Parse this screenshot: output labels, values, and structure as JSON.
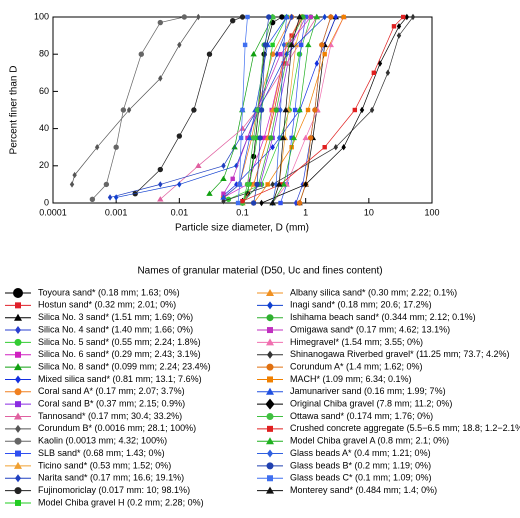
{
  "chart_data": {
    "type": "line",
    "xlabel": "Particle size diameter, D (mm)",
    "ylabel": "Percent finer than D",
    "legend_title": "Names of granular material (D50, Uc and fines content)",
    "xscale": "log",
    "xlim": [
      0.0001,
      100
    ],
    "xticks": [
      0.0001,
      0.001,
      0.01,
      0.1,
      1,
      10,
      100
    ],
    "ylim": [
      0,
      100
    ],
    "yticks": [
      0,
      20,
      40,
      60,
      80,
      100
    ],
    "series": [
      {
        "name": "Toyoura sand* (0.18 mm; 1.63; 0%)",
        "color": "#000000",
        "x": [
          0.1,
          0.12,
          0.15,
          0.18,
          0.22,
          0.3,
          0.42
        ],
        "values": [
          0,
          5,
          25,
          50,
          80,
          97,
          100
        ]
      },
      {
        "name": "Hostun sand* (0.32 mm; 2.01; 0%)",
        "color": "#e0202a",
        "x": [
          0.1,
          0.15,
          0.25,
          0.32,
          0.45,
          0.6,
          0.9
        ],
        "values": [
          0,
          10,
          35,
          50,
          75,
          90,
          100
        ]
      },
      {
        "name": "Silica No. 3 sand* (1.51 mm; 1.69; 0%)",
        "color": "#000000",
        "x": [
          0.8,
          1,
          1.3,
          1.5,
          2,
          3
        ],
        "values": [
          0,
          10,
          35,
          50,
          85,
          100
        ]
      },
      {
        "name": "Silica No. 4 sand* (1.40 mm; 1.66; 0%)",
        "color": "#2a3fd0",
        "x": [
          0.7,
          0.9,
          1.2,
          1.4,
          1.8,
          2.5
        ],
        "values": [
          0,
          10,
          35,
          50,
          85,
          100
        ]
      },
      {
        "name": "Silica No. 5 sand* (0.55 mm; 2.24; 1.8%)",
        "color": "#33cc33",
        "x": [
          0.06,
          0.2,
          0.4,
          0.55,
          0.8,
          1.2
        ],
        "values": [
          2,
          10,
          35,
          50,
          80,
          100
        ]
      },
      {
        "name": "Silica No. 6 sand* (0.29 mm; 2.43; 3.1%)",
        "color": "#d020c0",
        "x": [
          0.05,
          0.12,
          0.22,
          0.29,
          0.5,
          0.85
        ],
        "values": [
          3,
          10,
          35,
          50,
          85,
          100
        ]
      },
      {
        "name": "Silica No. 8 sand* (0.099 mm; 2.24; 23.4%)",
        "color": "#10a010",
        "x": [
          0.03,
          0.05,
          0.075,
          0.099,
          0.15,
          0.3
        ],
        "values": [
          5,
          13,
          30,
          50,
          80,
          100
        ]
      },
      {
        "name": "Mixed silica sand* (0.81 mm; 13.1; 7.6%)",
        "color": "#1530e0",
        "x": [
          0.05,
          0.08,
          0.3,
          0.81,
          1.5,
          3
        ],
        "values": [
          4,
          10,
          30,
          50,
          75,
          100
        ]
      },
      {
        "name": "Coral sand A* (0.17 mm; 2.07; 3.7%)",
        "color": "#f08020",
        "x": [
          0.05,
          0.09,
          0.14,
          0.17,
          0.3,
          0.6
        ],
        "values": [
          3,
          10,
          35,
          50,
          80,
          100
        ]
      },
      {
        "name": "Coral sand B* (0.37 mm; 2.15; 0.9%)",
        "color": "#8a2be2",
        "x": [
          0.1,
          0.19,
          0.3,
          0.37,
          0.6,
          1
        ],
        "values": [
          1,
          10,
          35,
          50,
          85,
          100
        ]
      },
      {
        "name": "Tannosand* (0.17 mm; 30.4; 33.2%)",
        "color": "#e060a0",
        "x": [
          0.005,
          0.02,
          0.1,
          0.17,
          0.5,
          1.5
        ],
        "values": [
          2,
          20,
          40,
          50,
          75,
          100
        ]
      },
      {
        "name": "Corundum B* (0.0016 mm; 28.1; 100%)",
        "color": "#555555",
        "x": [
          0.0002,
          0.00022,
          0.0005,
          0.0016,
          0.005,
          0.01,
          0.02
        ],
        "values": [
          10,
          15,
          30,
          50,
          67,
          85,
          100
        ]
      },
      {
        "name": "Kaolin (0.0013 mm; 4.32; 100%)",
        "color": "#666666",
        "x": [
          0.00042,
          0.0007,
          0.001,
          0.0013,
          0.0025,
          0.005,
          0.012
        ],
        "values": [
          2,
          10,
          30,
          50,
          80,
          97,
          100
        ]
      },
      {
        "name": "SLB sand* (0.68 mm; 1.43; 0%)",
        "color": "#3050f0",
        "x": [
          0.4,
          0.5,
          0.6,
          0.68,
          0.85,
          1
        ],
        "values": [
          0,
          10,
          35,
          50,
          85,
          100
        ]
      },
      {
        "name": "Ticino sand* (0.53 mm; 1.52; 0%)",
        "color": "#f0a030",
        "x": [
          0.3,
          0.38,
          0.47,
          0.53,
          0.7,
          0.9
        ],
        "values": [
          0,
          10,
          35,
          50,
          85,
          100
        ]
      },
      {
        "name": "Narita sand* (0.17 mm; 16.6; 19.1%)",
        "color": "#2040c0",
        "x": [
          0.0008,
          0.005,
          0.05,
          0.17,
          0.35,
          0.6
        ],
        "values": [
          3,
          10,
          20,
          50,
          80,
          100
        ]
      },
      {
        "name": "Fujinomoriclay (0.017 mm: 10; 98.1%)",
        "color": "#222222",
        "x": [
          0.002,
          0.005,
          0.01,
          0.017,
          0.03,
          0.07,
          0.1
        ],
        "values": [
          5,
          18,
          36,
          50,
          80,
          98,
          100
        ]
      },
      {
        "name": "Model Chiba gravel H (0.2 mm; 2.28; 0%)",
        "color": "#22cc22",
        "x": [
          0.1,
          0.13,
          0.17,
          0.2,
          0.3,
          0.5
        ],
        "values": [
          0,
          10,
          35,
          50,
          85,
          100
        ]
      },
      {
        "name": "Albany silica sand* (0.30 mm; 2.22; 0.1%)",
        "color": "#f09020",
        "x": [
          0.1,
          0.15,
          0.25,
          0.3,
          0.5,
          0.85
        ],
        "values": [
          0,
          10,
          35,
          50,
          85,
          100
        ]
      },
      {
        "name": "Inagi sand* (0.18 mm; 20.6; 17.2%)",
        "color": "#1040d0",
        "x": [
          0.001,
          0.01,
          0.08,
          0.18,
          0.5,
          2
        ],
        "values": [
          3,
          10,
          20,
          50,
          80,
          100
        ]
      },
      {
        "name": "Ishihama beach sand* (0.344 mm; 2.12; 0.1%)",
        "color": "#30b030",
        "x": [
          0.1,
          0.18,
          0.28,
          0.344,
          0.55,
          0.9
        ],
        "values": [
          0,
          10,
          35,
          50,
          85,
          100
        ]
      },
      {
        "name": "Omigawa sand* (0.17 mm; 4.62; 13.1%)",
        "color": "#c030c0",
        "x": [
          0.05,
          0.07,
          0.12,
          0.17,
          0.4,
          1.2
        ],
        "values": [
          5,
          13,
          35,
          50,
          80,
          100
        ]
      },
      {
        "name": "Himegravel* (1.54 mm; 3.55; 0%)",
        "color": "#f070b0",
        "x": [
          0.3,
          0.5,
          1,
          1.54,
          2.5,
          4
        ],
        "values": [
          0,
          10,
          35,
          50,
          85,
          100
        ]
      },
      {
        "name": "Shinanogawa Riverbed gravel* (11.25 mm; 73.7; 4.2%)",
        "color": "#333333",
        "x": [
          0.05,
          0.3,
          3,
          11.25,
          20,
          30,
          50
        ],
        "values": [
          1,
          10,
          30,
          50,
          70,
          90,
          100
        ]
      },
      {
        "name": "Corundum A* (1.4 mm; 1.62; 0%)",
        "color": "#e07010",
        "x": [
          0.8,
          1,
          1.2,
          1.4,
          1.8,
          2.5
        ],
        "values": [
          0,
          10,
          35,
          50,
          85,
          100
        ]
      },
      {
        "name": "MACH* (1.09 mm; 6.34; 0.1%)",
        "color": "#f08000",
        "x": [
          0.15,
          0.25,
          0.6,
          1.09,
          2,
          4
        ],
        "values": [
          0,
          10,
          30,
          50,
          80,
          100
        ]
      },
      {
        "name": "Jamunariver sand (0.16 mm; 1.99; 7%)",
        "color": "#2050e0",
        "x": [
          0.05,
          0.09,
          0.13,
          0.16,
          0.25,
          0.5
        ],
        "values": [
          3,
          10,
          35,
          50,
          85,
          100
        ]
      },
      {
        "name": "Original Chiba gravel (7.8 mm; 11.2; 0%)",
        "color": "#000000",
        "x": [
          0.2,
          1,
          4,
          7.8,
          15,
          30,
          40
        ],
        "values": [
          0,
          10,
          30,
          50,
          75,
          95,
          100
        ]
      },
      {
        "name": "Ottawa sand* (0.174 mm; 1.76; 0%)",
        "color": "#40c040",
        "x": [
          0.1,
          0.12,
          0.15,
          0.174,
          0.22,
          0.3
        ],
        "values": [
          0,
          10,
          35,
          50,
          85,
          100
        ]
      },
      {
        "name": "Crushed concrete aggregate (5.5−6.5 mm; 18.8; 1.2−2.1%)",
        "color": "#e02020",
        "x": [
          0.1,
          0.4,
          2,
          6,
          12,
          25,
          35
        ],
        "values": [
          1,
          10,
          30,
          50,
          70,
          95,
          100
        ]
      },
      {
        "name": "Model Chiba gravel A (0.8 mm; 2.1; 0%)",
        "color": "#20b020",
        "x": [
          0.3,
          0.45,
          0.65,
          0.8,
          1.1,
          1.5
        ],
        "values": [
          0,
          10,
          35,
          50,
          85,
          100
        ]
      },
      {
        "name": "Glass beads A* (0.4 mm; 1.21; 0%)",
        "color": "#3060e0",
        "x": [
          0.3,
          0.34,
          0.38,
          0.4,
          0.45,
          0.5
        ],
        "values": [
          0,
          10,
          35,
          50,
          85,
          100
        ]
      },
      {
        "name": "Glass beads B* (0.2 mm; 1.19; 0%)",
        "color": "#2040b0",
        "x": [
          0.15,
          0.17,
          0.19,
          0.2,
          0.23,
          0.26
        ],
        "values": [
          0,
          10,
          35,
          50,
          85,
          100
        ]
      },
      {
        "name": "Glass beads C* (0.1 mm; 1.09; 0%)",
        "color": "#4070f0",
        "x": [
          0.085,
          0.09,
          0.095,
          0.1,
          0.11,
          0.12
        ],
        "values": [
          0,
          10,
          35,
          50,
          85,
          100
        ]
      },
      {
        "name": "Monterey sand* (0.484 mm; 1.4; 0%)",
        "color": "#111111",
        "x": [
          0.3,
          0.38,
          0.44,
          0.484,
          0.6,
          0.8
        ],
        "values": [
          0,
          10,
          35,
          50,
          85,
          100
        ]
      }
    ]
  }
}
